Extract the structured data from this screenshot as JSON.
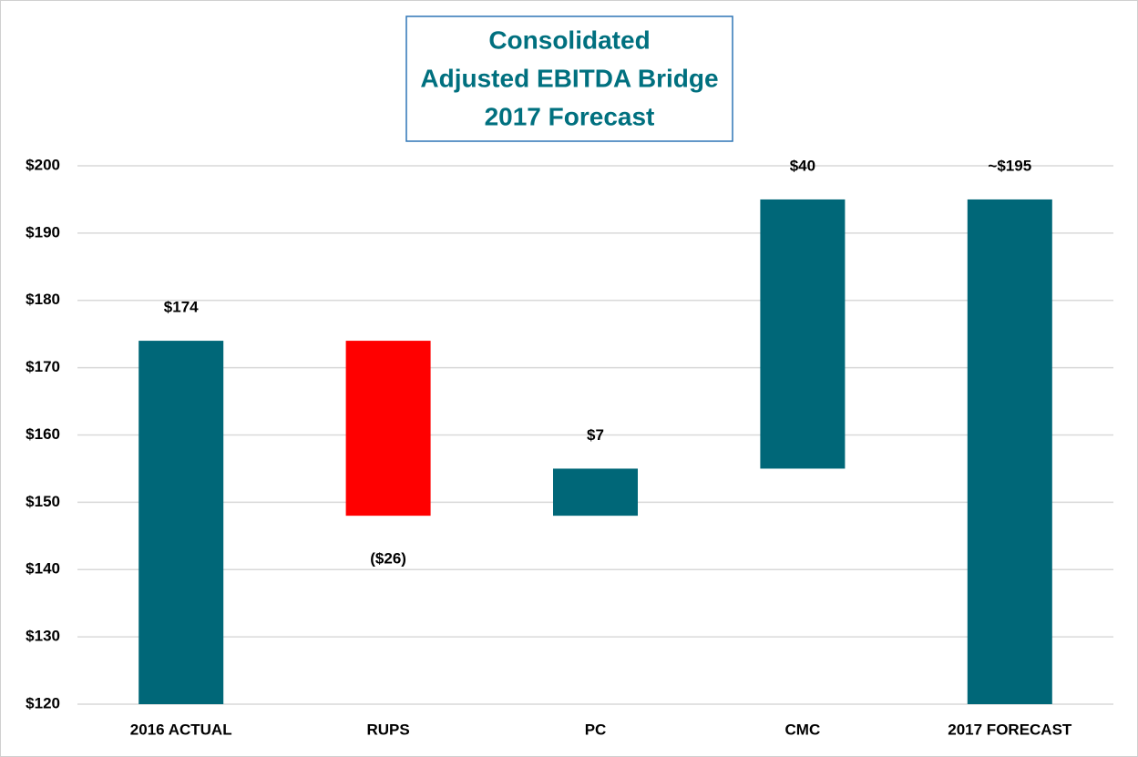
{
  "chart_data": {
    "type": "waterfall",
    "title": [
      "Consolidated",
      "Adjusted EBITDA Bridge",
      "2017 Forecast"
    ],
    "categories": [
      "2016 ACTUAL",
      "RUPS",
      "PC",
      "CMC",
      "2017 FORECAST"
    ],
    "values": [
      174,
      -26,
      7,
      40,
      195
    ],
    "value_labels": [
      "$174",
      "($26)",
      "$7",
      "$40",
      "~$195"
    ],
    "color": "#006778",
    "negative_color": "#ff0000",
    "ylim": [
      120,
      200
    ],
    "yticks": [
      {
        "value": 120,
        "label": "$120"
      },
      {
        "value": 130,
        "label": "$130"
      },
      {
        "value": 140,
        "label": "$140"
      },
      {
        "value": 150,
        "label": "$150"
      },
      {
        "value": 160,
        "label": "$160"
      },
      {
        "value": 170,
        "label": "$170"
      },
      {
        "value": 180,
        "label": "$180"
      },
      {
        "value": 190,
        "label": "$190"
      },
      {
        "value": 200,
        "label": "$200"
      }
    ],
    "grid": true
  }
}
